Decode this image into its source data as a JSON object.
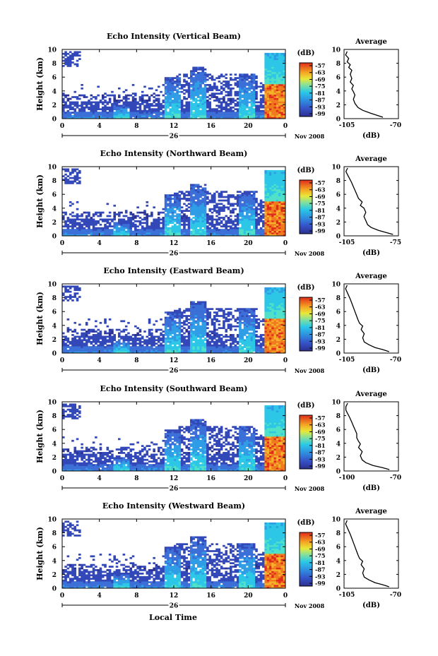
{
  "figure": {
    "xlabel": "Local Time",
    "ylabel": "Height (km)",
    "date_label": "Nov 2008",
    "day_label": "26",
    "colorbar_unit": "(dB)",
    "average_title": "Average",
    "average_xlabel": "(dB)"
  },
  "chart_data": [
    {
      "type": "heatmap",
      "title": "Echo Intensity (Vertical Beam)",
      "xlim": [
        0,
        24
      ],
      "ylim": [
        0,
        10
      ],
      "xticks": [
        "0",
        "4",
        "8",
        "12",
        "16",
        "20",
        "0"
      ],
      "yticks": [
        "0",
        "2",
        "4",
        "6",
        "8",
        "10"
      ],
      "colorbar": {
        "label": "(dB)",
        "range": [
          -99,
          -57
        ],
        "ticks": [
          "-57",
          "-63",
          "-69",
          "-75",
          "-81",
          "-87",
          "-93",
          "-99"
        ]
      },
      "average": {
        "title": "Average",
        "xlabel": "(dB)",
        "xlim": [
          -105,
          -70
        ],
        "xticks": [
          "-105",
          "-70"
        ],
        "yticks": [
          "0",
          "2",
          "4",
          "6",
          "8",
          "10"
        ],
        "profile": [
          [
            -80,
            0.2
          ],
          [
            -84,
            0.5
          ],
          [
            -88,
            0.8
          ],
          [
            -93,
            1.2
          ],
          [
            -96,
            1.6
          ],
          [
            -98,
            2.2
          ],
          [
            -99,
            2.8
          ],
          [
            -98,
            3.4
          ],
          [
            -99,
            3.9
          ],
          [
            -100,
            4.3
          ],
          [
            -99,
            4.8
          ],
          [
            -101,
            5.3
          ],
          [
            -100,
            5.8
          ],
          [
            -101,
            6.4
          ],
          [
            -100,
            7.0
          ],
          [
            -102,
            7.4
          ],
          [
            -101,
            7.8
          ],
          [
            -103,
            8.2
          ],
          [
            -102,
            8.7
          ],
          [
            -104,
            9.2
          ],
          [
            -103,
            9.7
          ]
        ]
      }
    },
    {
      "type": "heatmap",
      "title": "Echo Intensity (Northward Beam)",
      "xlim": [
        0,
        24
      ],
      "ylim": [
        0,
        10
      ],
      "xticks": [
        "0",
        "4",
        "8",
        "12",
        "16",
        "20",
        "0"
      ],
      "yticks": [
        "0",
        "2",
        "4",
        "6",
        "8",
        "10"
      ],
      "colorbar": {
        "label": "(dB)",
        "range": [
          -99,
          -57
        ],
        "ticks": [
          "-57",
          "-63",
          "-69",
          "-75",
          "-81",
          "-87",
          "-93",
          "-99"
        ]
      },
      "average": {
        "title": "Average",
        "xlabel": "(dB)",
        "xlim": [
          -105,
          -75
        ],
        "xticks": [
          "-105",
          "-75"
        ],
        "yticks": [
          "0",
          "2",
          "4",
          "6",
          "8",
          "10"
        ],
        "profile": [
          [
            -78,
            0.2
          ],
          [
            -82,
            0.5
          ],
          [
            -86,
            0.8
          ],
          [
            -90,
            1.2
          ],
          [
            -92,
            1.6
          ],
          [
            -93,
            2.2
          ],
          [
            -94,
            2.8
          ],
          [
            -93,
            3.4
          ],
          [
            -94,
            4.0
          ],
          [
            -96,
            4.4
          ],
          [
            -95,
            4.9
          ],
          [
            -97,
            5.4
          ],
          [
            -98,
            6.0
          ],
          [
            -99,
            6.6
          ],
          [
            -100,
            7.2
          ],
          [
            -101,
            7.8
          ],
          [
            -102,
            8.3
          ],
          [
            -103,
            8.8
          ],
          [
            -104,
            9.3
          ],
          [
            -103,
            9.8
          ]
        ]
      }
    },
    {
      "type": "heatmap",
      "title": "Echo Intensity (Eastward Beam)",
      "xlim": [
        0,
        24
      ],
      "ylim": [
        0,
        10
      ],
      "xticks": [
        "0",
        "4",
        "8",
        "12",
        "16",
        "20",
        "0"
      ],
      "yticks": [
        "0",
        "2",
        "4",
        "6",
        "8",
        "10"
      ],
      "colorbar": {
        "label": "(dB)",
        "range": [
          -99,
          -57
        ],
        "ticks": [
          "-57",
          "-63",
          "-69",
          "-75",
          "-81",
          "-87",
          "-93",
          "-99"
        ]
      },
      "average": {
        "title": "Average",
        "xlabel": "(dB)",
        "xlim": [
          -105,
          -70
        ],
        "xticks": [
          "-105",
          "-70"
        ],
        "yticks": [
          "0",
          "2",
          "4",
          "6",
          "8",
          "10"
        ],
        "profile": [
          [
            -76,
            0.2
          ],
          [
            -80,
            0.5
          ],
          [
            -85,
            0.8
          ],
          [
            -89,
            1.2
          ],
          [
            -92,
            1.6
          ],
          [
            -93,
            2.2
          ],
          [
            -92,
            2.8
          ],
          [
            -94,
            3.4
          ],
          [
            -93,
            3.9
          ],
          [
            -95,
            4.3
          ],
          [
            -96,
            4.8
          ],
          [
            -97,
            5.4
          ],
          [
            -98,
            6.0
          ],
          [
            -99,
            6.6
          ],
          [
            -100,
            7.2
          ],
          [
            -101,
            7.8
          ],
          [
            -102,
            8.3
          ],
          [
            -103,
            8.8
          ],
          [
            -104,
            9.3
          ],
          [
            -103,
            9.8
          ]
        ]
      }
    },
    {
      "type": "heatmap",
      "title": "Echo Intensity (Southward Beam)",
      "xlim": [
        0,
        24
      ],
      "ylim": [
        0,
        10
      ],
      "xticks": [
        "0",
        "4",
        "8",
        "12",
        "16",
        "20",
        "0"
      ],
      "yticks": [
        "0",
        "2",
        "4",
        "6",
        "8",
        "10"
      ],
      "colorbar": {
        "label": "(dB)",
        "range": [
          -99,
          -57
        ],
        "ticks": [
          "-57",
          "-63",
          "-69",
          "-75",
          "-81",
          "-87",
          "-93",
          "-99"
        ]
      },
      "average": {
        "title": "Average",
        "xlabel": "(dB)",
        "xlim": [
          -100,
          -70
        ],
        "xticks": [
          "-100",
          "-70"
        ],
        "yticks": [
          "0",
          "2",
          "4",
          "6",
          "8",
          "10"
        ],
        "profile": [
          [
            -75,
            0.2
          ],
          [
            -79,
            0.5
          ],
          [
            -84,
            0.8
          ],
          [
            -88,
            1.2
          ],
          [
            -90,
            1.6
          ],
          [
            -91,
            2.2
          ],
          [
            -90,
            2.8
          ],
          [
            -92,
            3.4
          ],
          [
            -91,
            3.9
          ],
          [
            -92,
            4.3
          ],
          [
            -93,
            4.8
          ],
          [
            -93,
            5.4
          ],
          [
            -94,
            6.0
          ],
          [
            -95,
            6.6
          ],
          [
            -96,
            7.2
          ],
          [
            -97,
            7.8
          ],
          [
            -98,
            8.3
          ],
          [
            -99,
            8.8
          ],
          [
            -99,
            9.3
          ],
          [
            -98,
            9.8
          ]
        ]
      }
    },
    {
      "type": "heatmap",
      "title": "Echo Intensity (Westward Beam)",
      "xlim": [
        0,
        24
      ],
      "ylim": [
        0,
        10
      ],
      "xticks": [
        "0",
        "4",
        "8",
        "12",
        "16",
        "20",
        "0"
      ],
      "yticks": [
        "0",
        "2",
        "4",
        "6",
        "8",
        "10"
      ],
      "colorbar": {
        "label": "(dB)",
        "range": [
          -99,
          -57
        ],
        "ticks": [
          "-57",
          "-63",
          "-69",
          "-75",
          "-81",
          "-87",
          "-93",
          "-99"
        ]
      },
      "average": {
        "title": "Average",
        "xlabel": "(dB)",
        "xlim": [
          -105,
          -70
        ],
        "xticks": [
          "-105",
          "-70"
        ],
        "yticks": [
          "0",
          "2",
          "4",
          "6",
          "8",
          "10"
        ],
        "profile": [
          [
            -76,
            0.2
          ],
          [
            -80,
            0.5
          ],
          [
            -85,
            0.8
          ],
          [
            -89,
            1.2
          ],
          [
            -92,
            1.6
          ],
          [
            -93,
            2.2
          ],
          [
            -92,
            2.8
          ],
          [
            -94,
            3.4
          ],
          [
            -93,
            3.9
          ],
          [
            -95,
            4.3
          ],
          [
            -96,
            4.8
          ],
          [
            -97,
            5.4
          ],
          [
            -98,
            6.0
          ],
          [
            -99,
            6.6
          ],
          [
            -100,
            7.2
          ],
          [
            -101,
            7.8
          ],
          [
            -102,
            8.3
          ],
          [
            -103,
            8.8
          ],
          [
            -104,
            9.3
          ],
          [
            -103,
            9.8
          ]
        ]
      }
    }
  ]
}
